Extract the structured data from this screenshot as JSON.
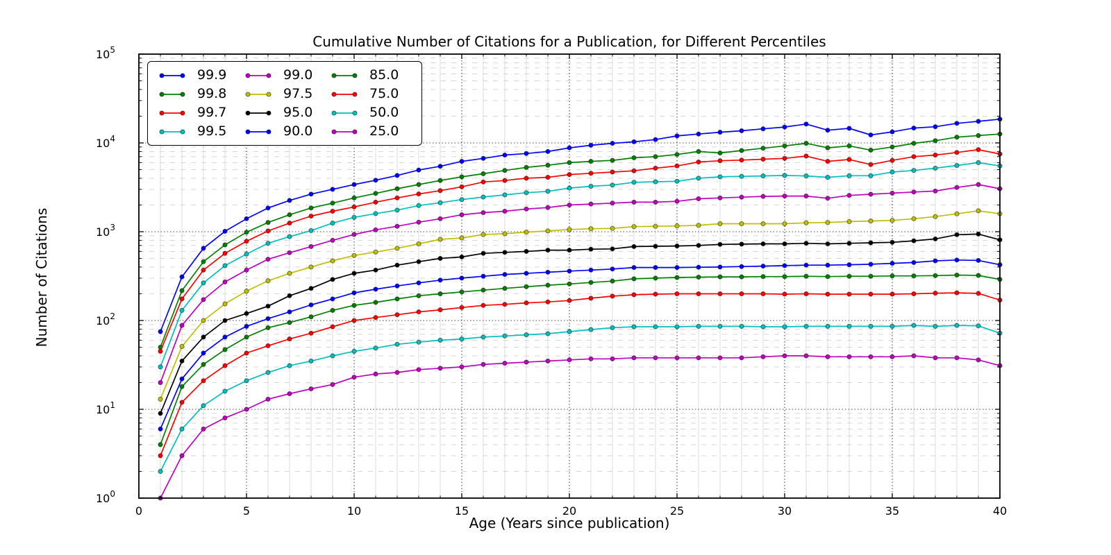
{
  "figure": {
    "title": "Cumulative Number of Citations for a Publication, for Different Percentiles",
    "xlabel": "Age (Years since publication)",
    "ylabel": "Number of Citations"
  },
  "axes": {
    "x": {
      "min": 0,
      "max": 40,
      "major_ticks": [
        0,
        5,
        10,
        15,
        20,
        25,
        30,
        35,
        40
      ],
      "minor_step": 1
    },
    "y": {
      "scale": "log",
      "base_label": "10",
      "exponents": [
        0,
        1,
        2,
        3,
        4,
        5
      ]
    }
  },
  "style": {
    "background": "#ffffff",
    "spine_color": "#000000",
    "major_grid_color": "#444444",
    "minor_vgrid_color": "#d8d8d8",
    "minor_hgrid_color": "#d0d0d0",
    "marker_edge_color": "rgba(0,0,0,0.55)"
  },
  "legend": {
    "note": "percentile labels, column-major 3x4, built from chart_data.series"
  },
  "chart_data": {
    "type": "line",
    "x": [
      1,
      2,
      3,
      4,
      5,
      6,
      7,
      8,
      9,
      10,
      11,
      12,
      13,
      14,
      15,
      16,
      17,
      18,
      19,
      20,
      21,
      22,
      23,
      24,
      25,
      26,
      27,
      28,
      29,
      30,
      31,
      32,
      33,
      34,
      35,
      36,
      37,
      38,
      39,
      40
    ],
    "xlim": [
      0,
      40
    ],
    "y_scale": "log",
    "ylim": [
      1,
      100000
    ],
    "grid": "major+minor",
    "legend_position": "upper-left",
    "title": "Cumulative Number of Citations for a Publication, for Different Percentiles",
    "xlabel": "Age (Years since publication)",
    "ylabel": "Number of Citations",
    "series": [
      {
        "name": "99.9",
        "color": "#0000ff",
        "values": [
          75,
          310,
          650,
          1010,
          1400,
          1850,
          2250,
          2650,
          3000,
          3400,
          3800,
          4300,
          4950,
          5450,
          6200,
          6700,
          7300,
          7600,
          8000,
          8800,
          9400,
          9900,
          10300,
          10900,
          12000,
          12600,
          13200,
          13700,
          14400,
          15100,
          16300,
          13900,
          14600,
          12300,
          13300,
          14700,
          15200,
          16600,
          17500,
          18500
        ]
      },
      {
        "name": "99.8",
        "color": "#008000",
        "values": [
          50,
          217,
          460,
          710,
          985,
          1270,
          1550,
          1850,
          2100,
          2400,
          2700,
          3050,
          3400,
          3770,
          4150,
          4500,
          4900,
          5300,
          5600,
          6000,
          6200,
          6350,
          6800,
          7000,
          7400,
          8000,
          7700,
          8200,
          8700,
          9250,
          9900,
          8800,
          9250,
          8300,
          9000,
          9900,
          10600,
          11600,
          12100,
          12600
        ]
      },
      {
        "name": "99.7",
        "color": "#ff0000",
        "values": [
          45,
          175,
          370,
          570,
          780,
          1020,
          1250,
          1500,
          1700,
          1900,
          2150,
          2400,
          2660,
          2900,
          3200,
          3630,
          3770,
          4000,
          4100,
          4400,
          4550,
          4700,
          4850,
          5200,
          5500,
          6100,
          6300,
          6400,
          6550,
          6700,
          7100,
          6200,
          6500,
          5700,
          6350,
          7000,
          7300,
          7800,
          8400,
          7500
        ]
      },
      {
        "name": "99.5",
        "color": "#00bfbf",
        "values": [
          30,
          130,
          265,
          415,
          560,
          740,
          880,
          1030,
          1250,
          1450,
          1600,
          1750,
          1970,
          2120,
          2300,
          2460,
          2600,
          2750,
          2850,
          3100,
          3250,
          3350,
          3600,
          3650,
          3700,
          4000,
          4150,
          4200,
          4250,
          4300,
          4250,
          4100,
          4270,
          4270,
          4700,
          4900,
          5200,
          5570,
          6000,
          5500
        ]
      },
      {
        "name": "99.0",
        "color": "#bf00bf",
        "values": [
          20,
          88,
          172,
          272,
          370,
          490,
          580,
          680,
          800,
          930,
          1050,
          1150,
          1280,
          1400,
          1550,
          1640,
          1700,
          1800,
          1870,
          2000,
          2050,
          2100,
          2150,
          2150,
          2200,
          2350,
          2400,
          2450,
          2500,
          2520,
          2520,
          2380,
          2560,
          2640,
          2720,
          2800,
          2870,
          3150,
          3400,
          3050
        ]
      },
      {
        "name": "97.5",
        "color": "#bfbf00",
        "values": [
          13,
          51,
          100,
          154,
          214,
          280,
          340,
          400,
          470,
          540,
          590,
          650,
          730,
          820,
          850,
          930,
          950,
          990,
          1020,
          1060,
          1080,
          1090,
          1140,
          1150,
          1160,
          1180,
          1230,
          1230,
          1230,
          1230,
          1260,
          1270,
          1300,
          1320,
          1340,
          1400,
          1480,
          1590,
          1720,
          1590
        ]
      },
      {
        "name": "95.0",
        "color": "#000000",
        "values": [
          9,
          35,
          65,
          100,
          120,
          145,
          190,
          230,
          290,
          340,
          370,
          420,
          460,
          500,
          520,
          570,
          585,
          600,
          620,
          620,
          635,
          640,
          680,
          685,
          690,
          700,
          720,
          725,
          730,
          730,
          740,
          730,
          740,
          750,
          760,
          790,
          830,
          925,
          940,
          810
        ]
      },
      {
        "name": "90.0",
        "color": "#0000ff",
        "values": [
          6,
          22,
          43,
          65,
          86,
          105,
          125,
          150,
          175,
          205,
          225,
          245,
          265,
          285,
          300,
          315,
          330,
          340,
          350,
          360,
          370,
          380,
          395,
          395,
          395,
          398,
          400,
          405,
          410,
          415,
          420,
          420,
          425,
          430,
          440,
          450,
          470,
          480,
          475,
          425
        ]
      },
      {
        "name": "85.0",
        "color": "#008000",
        "values": [
          4,
          18,
          32,
          47,
          65,
          83,
          95,
          110,
          130,
          148,
          160,
          175,
          190,
          200,
          210,
          220,
          230,
          240,
          250,
          258,
          268,
          278,
          295,
          300,
          305,
          308,
          310,
          310,
          312,
          312,
          315,
          312,
          315,
          315,
          318,
          318,
          320,
          325,
          322,
          290
        ]
      },
      {
        "name": "75.0",
        "color": "#ff0000",
        "values": [
          3,
          12,
          21,
          31,
          43,
          52,
          62,
          72,
          85,
          100,
          108,
          116,
          125,
          132,
          140,
          148,
          152,
          158,
          162,
          168,
          178,
          188,
          195,
          198,
          200,
          200,
          200,
          200,
          200,
          198,
          200,
          198,
          198,
          198,
          198,
          200,
          203,
          205,
          202,
          170
        ]
      },
      {
        "name": "50.0",
        "color": "#00bfbf",
        "values": [
          2,
          6,
          11,
          16,
          21,
          26,
          31,
          35,
          40,
          45,
          49,
          54,
          57,
          60,
          62,
          65,
          67,
          69,
          71,
          75,
          79,
          83,
          85,
          85,
          85,
          86,
          86,
          86,
          85,
          85,
          86,
          86,
          86,
          86,
          86,
          88,
          86,
          88,
          87,
          72
        ]
      },
      {
        "name": "25.0",
        "color": "#bf00bf",
        "values": [
          1,
          3,
          6,
          8,
          10,
          13,
          15,
          17,
          19,
          23,
          25,
          26,
          28,
          29,
          30,
          32,
          33,
          34,
          35,
          36,
          37,
          37,
          38,
          38,
          38,
          38,
          38,
          38,
          39,
          40,
          40,
          39,
          39,
          39,
          39,
          40,
          38,
          38,
          36,
          31
        ]
      }
    ]
  }
}
